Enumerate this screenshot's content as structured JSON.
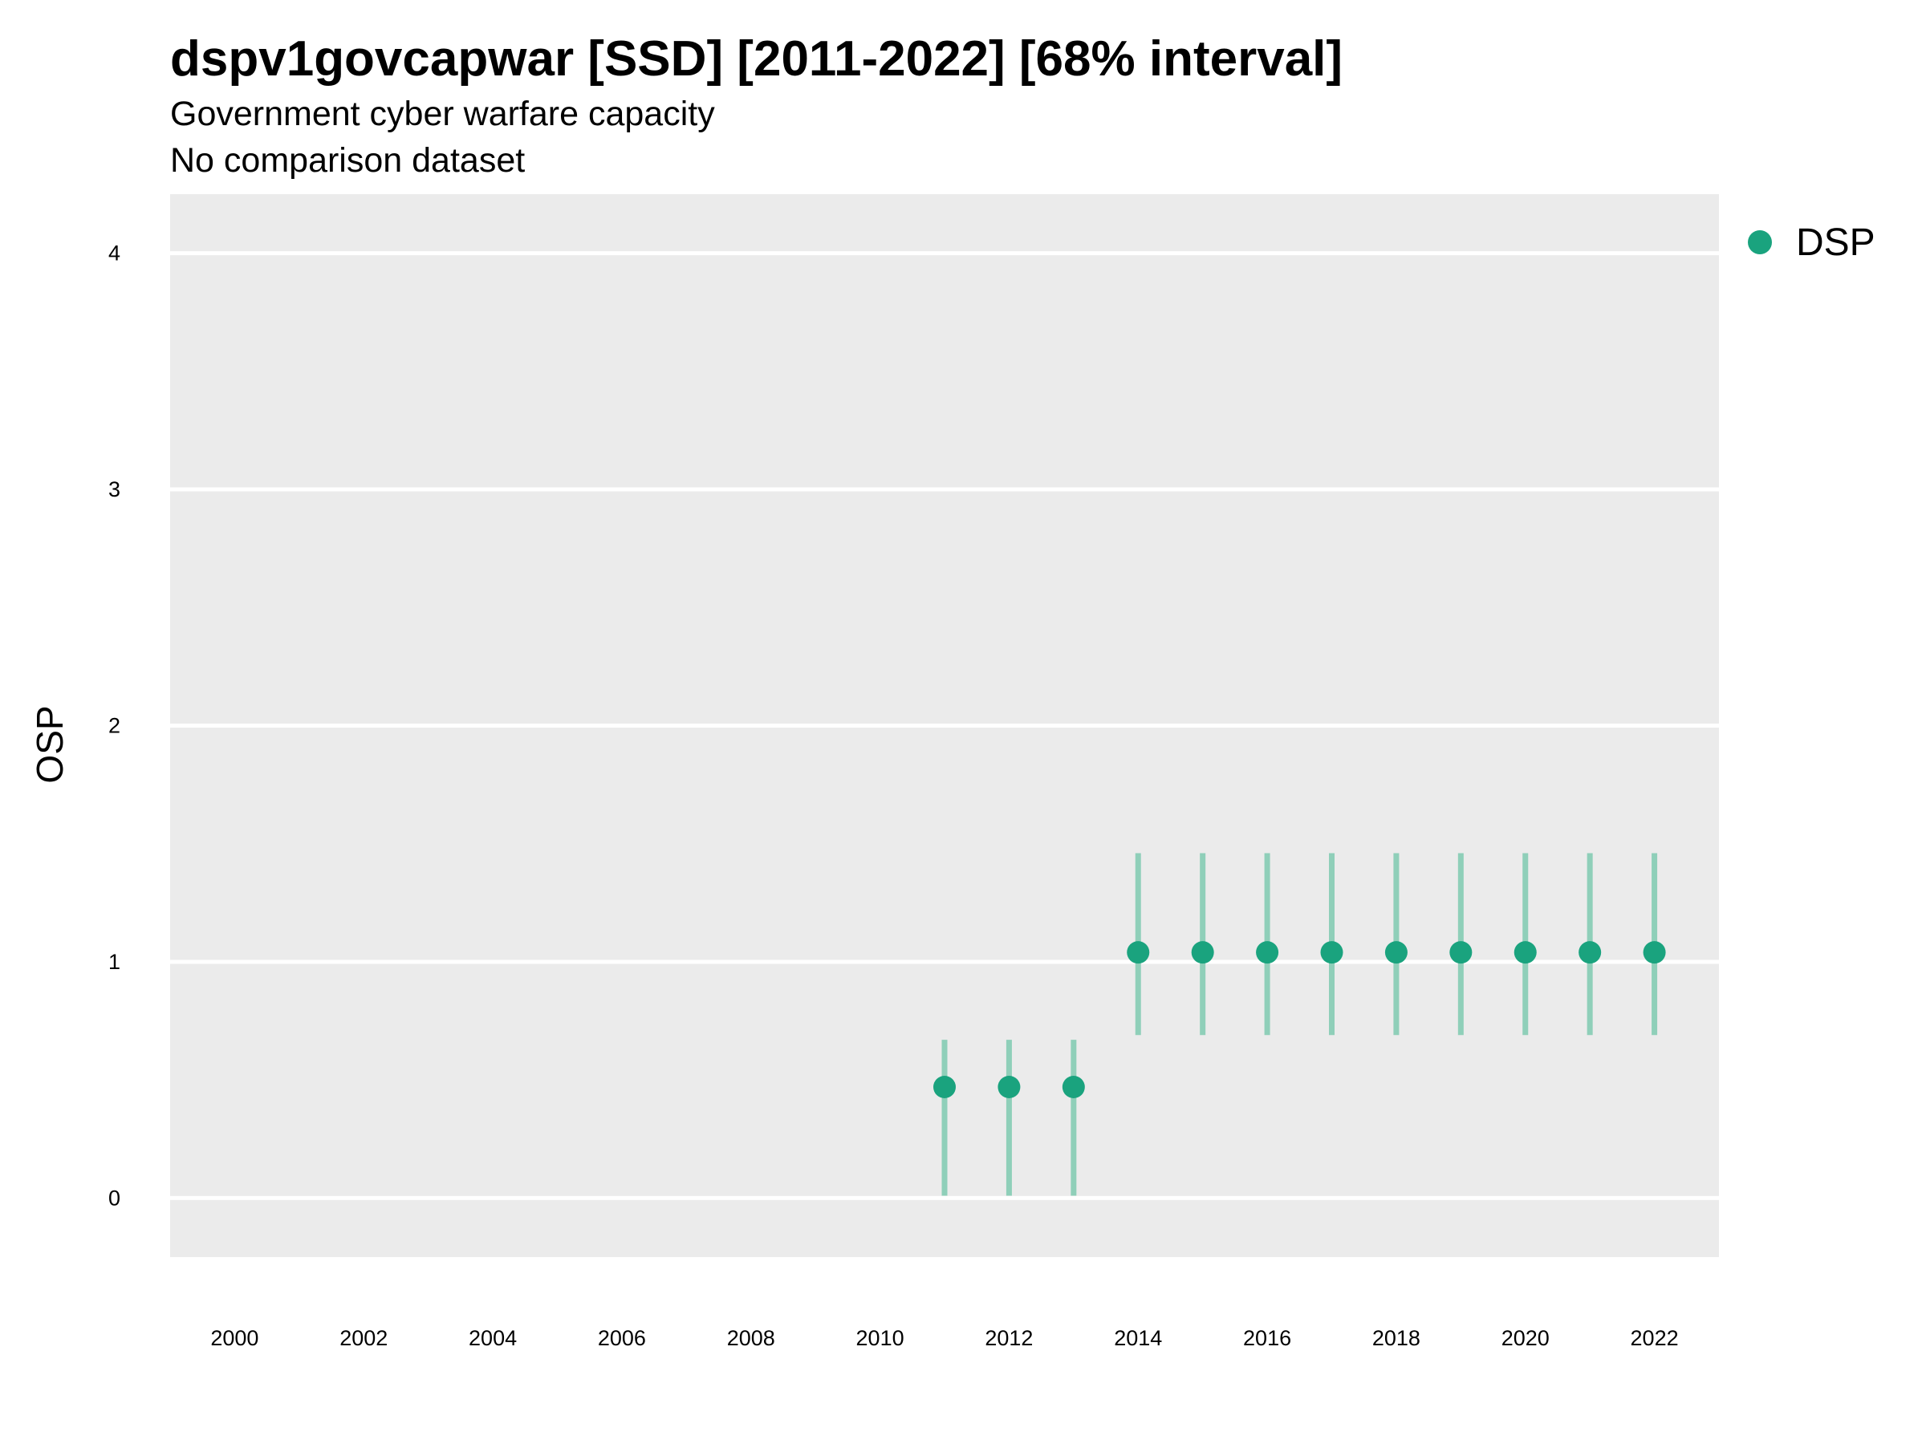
{
  "chart_data": {
    "type": "scatter",
    "title": "dspv1govcapwar [SSD] [2011-2022] [68% interval]",
    "subtitle": "Government cyber warfare capacity",
    "caption": "No comparison dataset",
    "xlabel": "",
    "ylabel": "OSP",
    "x_ticks": [
      2000,
      2002,
      2004,
      2006,
      2008,
      2010,
      2012,
      2014,
      2016,
      2018,
      2020,
      2022
    ],
    "y_ticks": [
      0,
      1,
      2,
      3,
      4
    ],
    "xlim": [
      1999,
      2023
    ],
    "ylim": [
      -0.25,
      4.25
    ],
    "grid": "horizontal",
    "legend_position": "right",
    "series": [
      {
        "name": "DSP",
        "color": "#1aa37e",
        "interval_color": "#8fcfb9",
        "points": [
          {
            "x": 2011,
            "y": 0.47,
            "lower": 0.01,
            "upper": 0.67
          },
          {
            "x": 2012,
            "y": 0.47,
            "lower": 0.01,
            "upper": 0.67
          },
          {
            "x": 2013,
            "y": 0.47,
            "lower": 0.01,
            "upper": 0.67
          },
          {
            "x": 2014,
            "y": 1.04,
            "lower": 0.69,
            "upper": 1.46
          },
          {
            "x": 2015,
            "y": 1.04,
            "lower": 0.69,
            "upper": 1.46
          },
          {
            "x": 2016,
            "y": 1.04,
            "lower": 0.69,
            "upper": 1.46
          },
          {
            "x": 2017,
            "y": 1.04,
            "lower": 0.69,
            "upper": 1.46
          },
          {
            "x": 2018,
            "y": 1.04,
            "lower": 0.69,
            "upper": 1.46
          },
          {
            "x": 2019,
            "y": 1.04,
            "lower": 0.69,
            "upper": 1.46
          },
          {
            "x": 2020,
            "y": 1.04,
            "lower": 0.69,
            "upper": 1.46
          },
          {
            "x": 2021,
            "y": 1.04,
            "lower": 0.69,
            "upper": 1.46
          },
          {
            "x": 2022,
            "y": 1.04,
            "lower": 0.69,
            "upper": 1.46
          }
        ]
      }
    ],
    "panel_color": "#ebebeb",
    "grid_color": "#ffffff"
  }
}
